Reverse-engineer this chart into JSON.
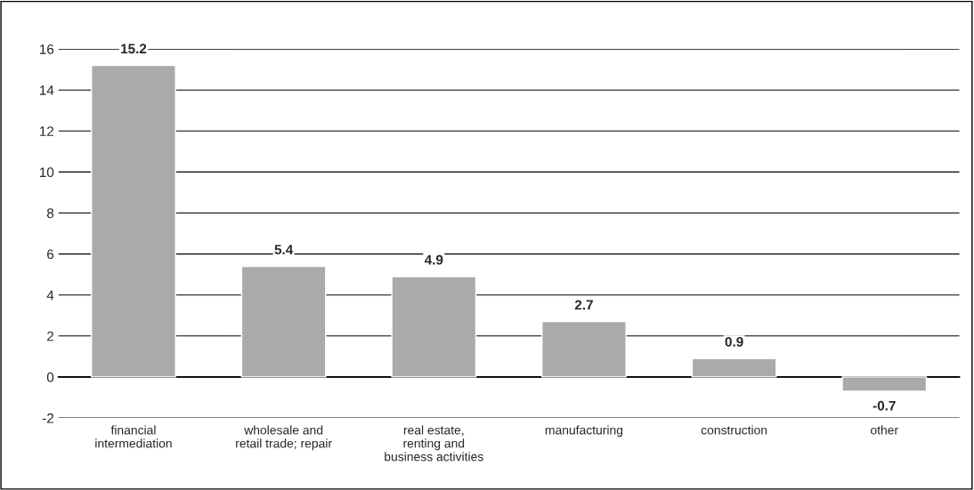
{
  "chart_data": {
    "type": "bar",
    "categories": [
      "financial\nintermediation",
      "wholesale and\nretail trade; repair",
      "real estate,\nrenting and\nbusiness activities",
      "manufacturing",
      "construction",
      "other"
    ],
    "values": [
      15.2,
      5.4,
      4.9,
      2.7,
      0.9,
      -0.7
    ],
    "color": "#aaaaaa",
    "ylim": [
      -2,
      16
    ],
    "yticks": [
      -2,
      0,
      2,
      4,
      6,
      8,
      10,
      12,
      14,
      16
    ],
    "grid": "y",
    "data_labels": true,
    "legend": false
  }
}
